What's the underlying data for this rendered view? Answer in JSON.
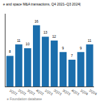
{
  "chart_data": {
    "type": "bar",
    "title": "e and space M&A transactions, Q4 2021–Q3 2024|",
    "categories": [
      "1Q22",
      "2Q22",
      "3Q22",
      "4Q22",
      "1Q23",
      "2Q23",
      "3Q23",
      "4Q23",
      "1Q24",
      "2Q24"
    ],
    "values": [
      8,
      11,
      10,
      16,
      13,
      12,
      9,
      7,
      9,
      11
    ],
    "color": "#1b6eac",
    "ylim": [
      0,
      19
    ],
    "grid": false,
    "data_labels": true,
    "tick_labels": "x",
    "annotations": [
      "e Foundation database"
    ]
  }
}
